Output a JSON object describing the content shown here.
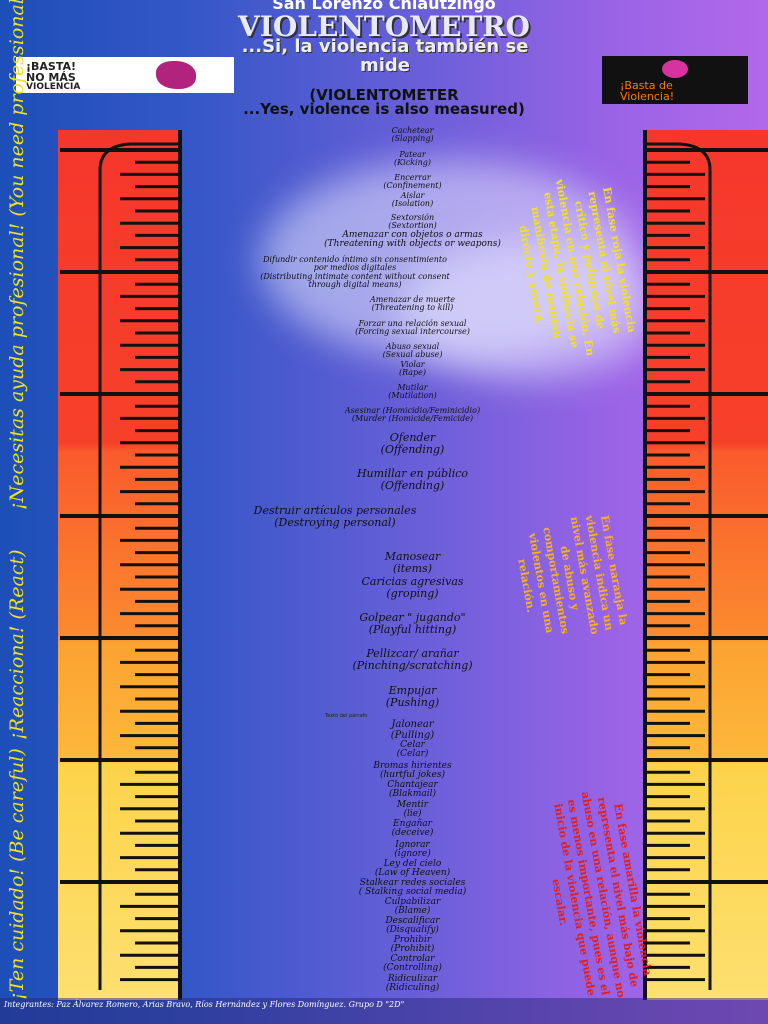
{
  "header": {
    "town": "San Lorenzo Chiautzingo",
    "title": "VIOLENTOMETRO",
    "subtitle": "...Si, la violencia también se mide",
    "title_en": "(VIOLENTOMETER",
    "subtitle_en": "...Yes, violence is also measured)"
  },
  "logo_left": {
    "line1": "¡BASTA!",
    "line2": "NO MÁS",
    "line3": "VIOLENCIA"
  },
  "logo_right": {
    "line1": "¡Basta de",
    "line2": "Violencia!"
  },
  "items": [
    {
      "es": "Cachetear",
      "en": "(Slapping)"
    },
    {
      "es": "Patear",
      "en": "(Kicking)"
    },
    {
      "es": "Encerrar",
      "en": "(Confinement)"
    },
    {
      "es": "Aislar",
      "en": "(Isolation)"
    },
    {
      "es": "Sextorsión",
      "en": "(Sextortion)"
    },
    {
      "es": "Amenazar con objetos o armas",
      "en": "(Threatening with objects or weapons)"
    },
    {
      "es": "Difundir contenido íntimo sin consentimiento por medios digitales",
      "en": "(Distributing intimate content without consent through digital means)"
    },
    {
      "es": "Amenazar de muerte",
      "en": "(Threatening to kill)"
    },
    {
      "es": "Forzar una relación sexual",
      "en": "(Forcing sexual intercourse)"
    },
    {
      "es": "Abuso sexual",
      "en": "(Sexual abuse)"
    },
    {
      "es": "Violar",
      "en": "(Rape)"
    },
    {
      "es": "Mutilar",
      "en": "(Mutilation)"
    },
    {
      "es": "Asesinar (Homicidio/Feminicidio)",
      "en": "(Murder (Homicide/Femicide)"
    },
    {
      "es": "Ofender",
      "en": "(Offending)"
    },
    {
      "es": "Humillar en público",
      "en": "(Offending)"
    },
    {
      "es": "Destruir artículos personales",
      "en": "(Destroying personal)"
    },
    {
      "es": "Manosear",
      "en": "(items)"
    },
    {
      "es": "Caricias agresivas",
      "en": "(groping)"
    },
    {
      "es": "Golpear \" jugando\"",
      "en": "(Playful hitting)"
    },
    {
      "es": "Pellizcar/ arañar",
      "en": "(Pinching/scratching)"
    },
    {
      "es": "Empujar",
      "en": "(Pushing)"
    },
    {
      "es": "Jalonear",
      "en": "(Pulling)"
    },
    {
      "es": "Celar",
      "en": "(Celar)"
    },
    {
      "es": "Bromas hirientes",
      "en": "(hurtful jokes)"
    },
    {
      "es": "Chantajear",
      "en": "(Blakmail)"
    },
    {
      "es": "Mentir",
      "en": "(lie)"
    },
    {
      "es": "Engañar",
      "en": "(deceive)"
    },
    {
      "es": "Ignorar",
      "en": "(ignore)"
    },
    {
      "es": "Ley del cielo",
      "en": "(Law of Heaven)"
    },
    {
      "es": "Stalkear redes sociales",
      "en": "( Stalking social media)"
    },
    {
      "es": "Culpabilizar",
      "en": "(Blame)"
    },
    {
      "es": "Descalificar",
      "en": "(Disqualify)"
    },
    {
      "es": "Prohibir",
      "en": "(Prohibit)"
    },
    {
      "es": "Controlar",
      "en": "(Controlling)"
    },
    {
      "es": "Ridiculizar",
      "en": "(Ridiculing)"
    }
  ],
  "side_left": [
    "¡Necesitas ayuda profesional! (You need professional help)",
    "¡Reacciona! (React)",
    "¡Ten cuidado! (Be careful)"
  ],
  "side_right": [
    "En fase roja la violencia representa el nivel más crítico y peligroso de violencia en una relación. En esta etapa, la violencia se manifiesta de manera directa y severa.",
    "En fase naranja la violencia indica un nivel más avanzado de abuso y comportamientos violentos en una relación.",
    "En fase amarilla la violencia representa el nivel más bajo de abuso en una relación, aunque no es menos importante, pues es el inicio de la violencia que puede escalar."
  ],
  "placeholder": "Texto del párrafo",
  "footer": "Integrantes: Paz Álvarez Romero, Arias Bravo, Ríos Hernández y Flores Domínguez. Grupo D \"2D\""
}
